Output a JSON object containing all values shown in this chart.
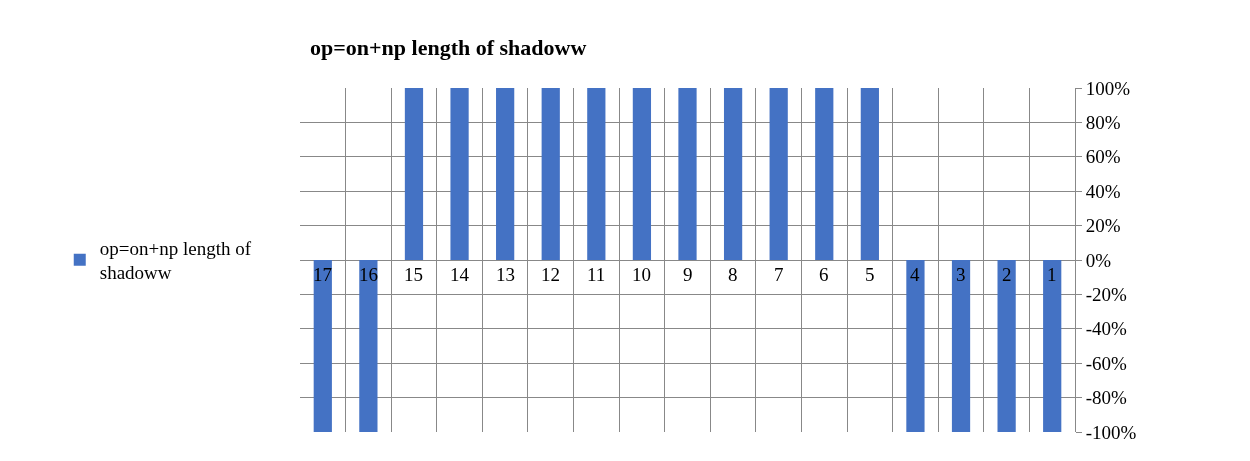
{
  "chart_data": {
    "type": "bar",
    "title": "op=on+np length of shadoww",
    "categories": [
      "17",
      "16",
      "15",
      "14",
      "13",
      "12",
      "11",
      "10",
      "9",
      "8",
      "7",
      "6",
      "5",
      "4",
      "3",
      "2",
      "1"
    ],
    "series": [
      {
        "name": "op=on+np length of shadoww",
        "color": "#4472c4",
        "values": [
          -100,
          -100,
          100,
          100,
          100,
          100,
          100,
          100,
          100,
          100,
          100,
          100,
          100,
          -100,
          -100,
          -100,
          -100
        ]
      }
    ],
    "ylim": [
      -100,
      100
    ],
    "yticks": [
      {
        "value": -100,
        "label": "-100%"
      },
      {
        "value": -80,
        "label": "-80%"
      },
      {
        "value": -60,
        "label": "-60%"
      },
      {
        "value": -40,
        "label": "-40%"
      },
      {
        "value": -20,
        "label": "-20%"
      },
      {
        "value": 0,
        "label": "0%"
      },
      {
        "value": 20,
        "label": "20%"
      },
      {
        "value": 40,
        "label": "40%"
      },
      {
        "value": 60,
        "label": "60%"
      },
      {
        "value": 80,
        "label": "80%"
      },
      {
        "value": 100,
        "label": "100%"
      }
    ],
    "grid": true,
    "legend": "left"
  }
}
